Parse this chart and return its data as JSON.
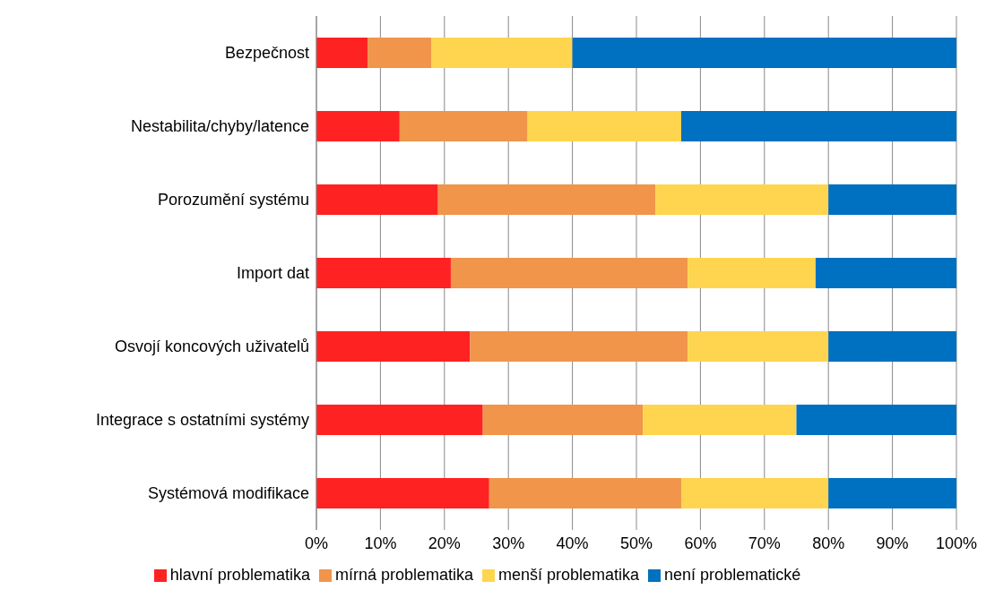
{
  "chart_data": {
    "type": "bar",
    "orientation": "horizontal",
    "stacked": true,
    "categories": [
      "Bezpečnost",
      "Nestabilita/chyby/latence",
      "Porozumění systému",
      "Import dat",
      "Osvojí koncových uživatelů",
      "Integrace s ostatními systémy",
      "Systémová modifikace"
    ],
    "series": [
      {
        "name": "hlavní problematika",
        "color": "#ff2222",
        "values": [
          8,
          13,
          19,
          21,
          24,
          26,
          27
        ]
      },
      {
        "name": "mírná problematika",
        "color": "#f0954a",
        "values": [
          10,
          20,
          34,
          37,
          34,
          25,
          30
        ]
      },
      {
        "name": "menší problematika",
        "color": "#ffd54f",
        "values": [
          22,
          24,
          27,
          20,
          22,
          24,
          23
        ]
      },
      {
        "name": "není problematické",
        "color": "#0070c0",
        "values": [
          60,
          43,
          20,
          22,
          20,
          25,
          20
        ]
      }
    ],
    "xlim": [
      0,
      100
    ],
    "xticks": [
      {
        "value": 0,
        "label": "0%"
      },
      {
        "value": 10,
        "label": "10%"
      },
      {
        "value": 20,
        "label": "20%"
      },
      {
        "value": 30,
        "label": "30%"
      },
      {
        "value": 40,
        "label": "40%"
      },
      {
        "value": 50,
        "label": "50%"
      },
      {
        "value": 60,
        "label": "60%"
      },
      {
        "value": 70,
        "label": "70%"
      },
      {
        "value": 80,
        "label": "80%"
      },
      {
        "value": 90,
        "label": "90%"
      },
      {
        "value": 100,
        "label": "100%"
      }
    ],
    "grid": "x",
    "legend": "bottom"
  }
}
